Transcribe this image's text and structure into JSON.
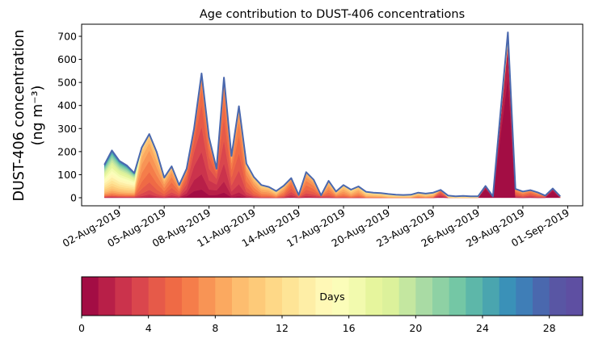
{
  "chart_data": {
    "type": "area",
    "stacked": true,
    "title": "Age contribution to DUST-406 concentrations",
    "ylabel_line1": "DUST-406 concentration",
    "ylabel_line2": "(ng m⁻³)",
    "xlabel": "",
    "ylim": [
      -35,
      760
    ],
    "yticks": [
      0,
      100,
      200,
      300,
      400,
      500,
      600,
      700
    ],
    "x_start": "2019-08-01 00:00",
    "x_step_hours": 12,
    "xticks": [
      {
        "day": 1,
        "label": "02-Aug-2019"
      },
      {
        "day": 4,
        "label": "05-Aug-2019"
      },
      {
        "day": 7,
        "label": "08-Aug-2019"
      },
      {
        "day": 10,
        "label": "11-Aug-2019"
      },
      {
        "day": 13,
        "label": "14-Aug-2019"
      },
      {
        "day": 16,
        "label": "17-Aug-2019"
      },
      {
        "day": 19,
        "label": "20-Aug-2019"
      },
      {
        "day": 22,
        "label": "23-Aug-2019"
      },
      {
        "day": 25,
        "label": "26-Aug-2019"
      },
      {
        "day": 28,
        "label": "29-Aug-2019"
      },
      {
        "day": 31,
        "label": "01-Sep-2019"
      }
    ],
    "total": [
      143,
      205,
      160,
      140,
      107,
      218,
      276,
      198,
      87,
      136,
      55,
      126,
      300,
      539,
      262,
      126,
      521,
      181,
      397,
      148,
      90,
      55,
      47,
      29,
      52,
      85,
      12,
      111,
      78,
      10,
      73,
      27,
      55,
      35,
      49,
      26,
      22,
      20,
      16,
      13,
      12,
      13,
      22,
      18,
      22,
      34,
      9,
      6,
      8,
      6,
      6,
      51,
      6,
      367,
      717,
      38,
      27,
      33,
      23,
      9,
      40,
      6
    ],
    "mean_age_days": [
      15,
      15,
      15,
      15,
      14,
      7,
      6.5,
      7,
      7,
      6,
      6,
      4,
      3,
      3.5,
      4,
      3,
      4,
      5,
      5,
      6,
      7,
      8,
      8,
      9,
      7,
      5,
      6,
      6,
      6,
      4,
      7,
      8,
      8,
      9,
      8,
      10,
      10,
      10,
      11,
      11,
      11,
      11,
      9,
      10,
      9,
      4,
      12,
      13,
      13,
      13,
      13,
      0.5,
      1,
      0.5,
      0.5,
      5,
      6,
      5,
      6,
      4,
      0.5,
      6
    ],
    "age_spread_days": [
      6,
      6,
      6,
      6,
      6,
      2.2,
      2.2,
      2.2,
      2.2,
      2.2,
      2.2,
      2.2,
      2,
      2,
      2,
      2,
      2,
      2,
      2,
      2.2,
      2.2,
      2.2,
      2.2,
      2.2,
      2.2,
      2,
      2.2,
      2.2,
      2.2,
      2,
      2.2,
      2.2,
      2.2,
      2.2,
      2.2,
      2.2,
      2.2,
      2.2,
      2.2,
      2.2,
      2.2,
      2.2,
      2.2,
      2.2,
      2.2,
      2,
      2.5,
      2.5,
      2.5,
      2.5,
      2.5,
      0.6,
      0.8,
      0.6,
      0.6,
      2,
      2,
      2,
      2,
      2,
      0.6,
      2
    ],
    "total_line_color": "#4a68ae",
    "colorbar": {
      "label": "Days",
      "range": [
        0,
        30
      ],
      "ticks": [
        0,
        4,
        8,
        12,
        16,
        20,
        24,
        28
      ],
      "colors": [
        "#a30d44",
        "#b81f48",
        "#cb334c",
        "#da464d",
        "#e65a49",
        "#ef6a45",
        "#f57d4a",
        "#f89455",
        "#fba960",
        "#fdbd6f",
        "#fdca79",
        "#fed887",
        "#fee496",
        "#feeea6",
        "#fff8b6",
        "#fbfdb9",
        "#f2faae",
        "#e6f59d",
        "#dcf19b",
        "#c4e7a0",
        "#a9dba4",
        "#8ed1a4",
        "#74c7a5",
        "#5db7a9",
        "#4aa5af",
        "#3a91b8",
        "#3f7eb7",
        "#4a68ae",
        "#5956a4",
        "#5e4fa2"
      ]
    }
  }
}
